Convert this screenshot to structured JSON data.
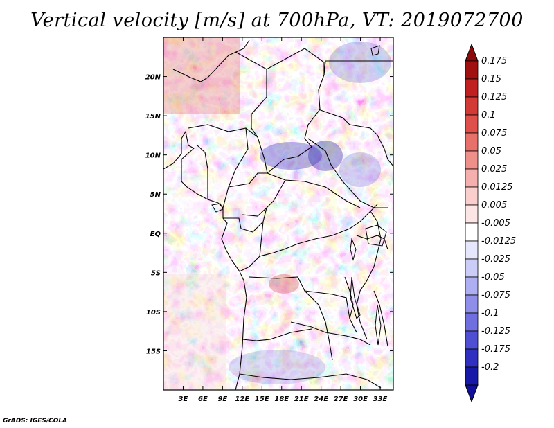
{
  "title": "Vertical velocity [m/s] at 700hPa, VT: 2019072700",
  "credit": "GrADS: IGES/COLA",
  "map": {
    "lon_range": [
      0,
      35
    ],
    "lat_range": [
      -20,
      25
    ],
    "lat_ticks": [
      {
        "value": 20,
        "label": "20N"
      },
      {
        "value": 15,
        "label": "15N"
      },
      {
        "value": 10,
        "label": "10N"
      },
      {
        "value": 5,
        "label": "5N"
      },
      {
        "value": 0,
        "label": "EQ"
      },
      {
        "value": -5,
        "label": "5S"
      },
      {
        "value": -10,
        "label": "10S"
      },
      {
        "value": -15,
        "label": "15S"
      }
    ],
    "lon_ticks": [
      {
        "value": 3,
        "label": "3E"
      },
      {
        "value": 6,
        "label": "6E"
      },
      {
        "value": 9,
        "label": "9E"
      },
      {
        "value": 12,
        "label": "12E"
      },
      {
        "value": 15,
        "label": "15E"
      },
      {
        "value": 18,
        "label": "18E"
      },
      {
        "value": 21,
        "label": "21E"
      },
      {
        "value": 24,
        "label": "24E"
      },
      {
        "value": 27,
        "label": "27E"
      },
      {
        "value": 30,
        "label": "30E"
      },
      {
        "value": 33,
        "label": "33E"
      }
    ]
  },
  "colorbar": {
    "levels": [
      {
        "label": "0.175",
        "color": "#a01010"
      },
      {
        "label": "0.15",
        "color": "#c02020"
      },
      {
        "label": "0.125",
        "color": "#d23a36"
      },
      {
        "label": "0.1",
        "color": "#e0504a"
      },
      {
        "label": "0.075",
        "color": "#e8706a"
      },
      {
        "label": "0.05",
        "color": "#ef8f8a"
      },
      {
        "label": "0.025",
        "color": "#f5b0ad"
      },
      {
        "label": "0.0125",
        "color": "#f9cecc"
      },
      {
        "label": "0.005",
        "color": "#fce6e5"
      },
      {
        "label": "-0.005",
        "color": "#ffffff"
      },
      {
        "label": "-0.0125",
        "color": "#e6e6fc"
      },
      {
        "label": "-0.025",
        "color": "#ccccf8"
      },
      {
        "label": "-0.05",
        "color": "#aeaef2"
      },
      {
        "label": "-0.075",
        "color": "#8f8fea"
      },
      {
        "label": "-0.1",
        "color": "#6f6fe0"
      },
      {
        "label": "-0.125",
        "color": "#4f4fd4"
      },
      {
        "label": "-0.175",
        "color": "#3030c0"
      },
      {
        "label": "-0.2",
        "color": "#1818a8"
      }
    ],
    "top_color": "#8c0a0a",
    "bottom_color": "#10109a"
  }
}
